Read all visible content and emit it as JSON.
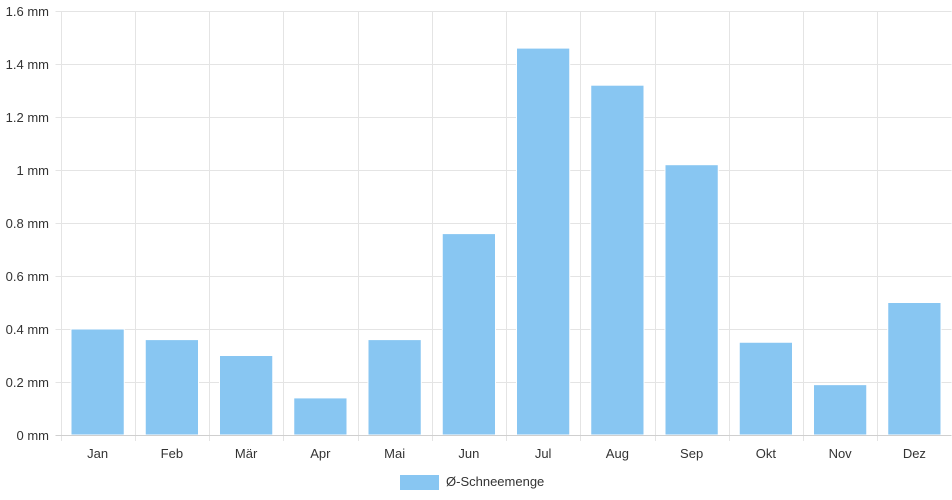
{
  "chart_data": {
    "type": "bar",
    "categories": [
      "Jan",
      "Feb",
      "Mär",
      "Apr",
      "Mai",
      "Jun",
      "Jul",
      "Aug",
      "Sep",
      "Okt",
      "Nov",
      "Dez"
    ],
    "series": [
      {
        "name": "Ø-Schneemenge",
        "values": [
          0.4,
          0.36,
          0.3,
          0.14,
          0.36,
          0.76,
          1.46,
          1.32,
          1.02,
          0.35,
          0.19,
          0.5
        ],
        "color": "#88c6f2"
      }
    ],
    "unit": "mm",
    "ylim": [
      0,
      1.6
    ],
    "yticks": [
      0,
      0.2,
      0.4,
      0.6,
      0.8,
      1,
      1.2,
      1.4,
      1.6
    ],
    "ytick_labels": [
      "0 mm",
      "0.2 mm",
      "0.4 mm",
      "0.6 mm",
      "0.8 mm",
      "1 mm",
      "1.2 mm",
      "1.4 mm",
      "1.6 mm"
    ],
    "grid": true,
    "legend_position": "bottom-center"
  }
}
